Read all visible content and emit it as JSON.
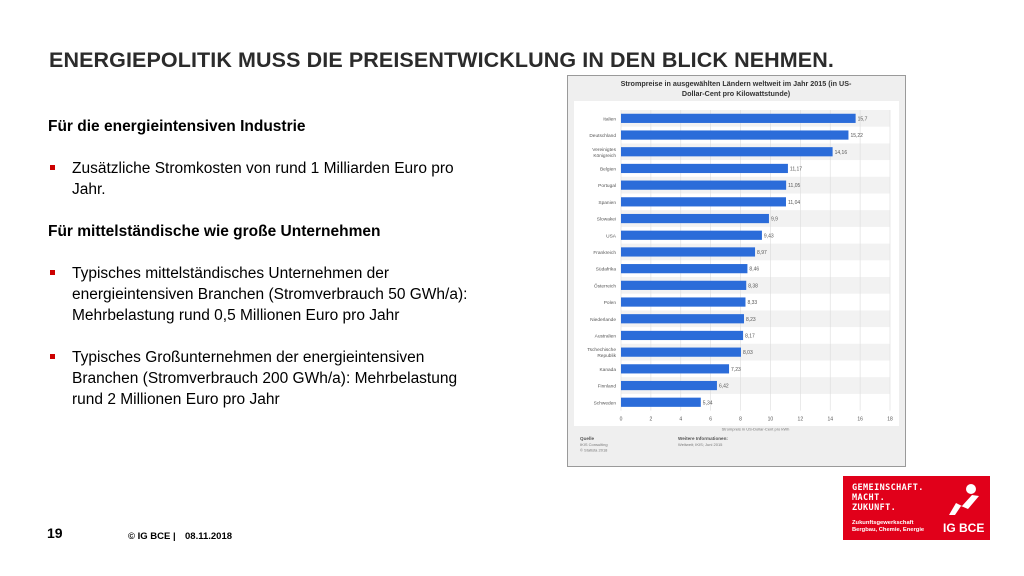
{
  "slide": {
    "title": "ENERGIEPOLITIK MUSS DIE PREISENTWICKLUNG IN DEN BLICK NEHMEN.",
    "page_number": "19",
    "copyright": "© IG BCE |",
    "date": "08.11.2018"
  },
  "content": {
    "heading1": "Für die energieintensiven Industrie",
    "bullet1": "Zusätzliche Stromkosten von rund 1 Milliarden Euro pro Jahr.",
    "heading2": "Für mittelständische wie große Unternehmen",
    "bullet2": "Typisches mittelständisches Unternehmen der energieintensiven Branchen (Stromverbrauch 50 GWh/a): Mehrbelastung rund 0,5 Millionen Euro pro Jahr",
    "bullet3": "Typisches Großunternehmen der energieintensiven Branchen (Stromverbrauch 200 GWh/a): Mehrbelastung rund 2 Millionen Euro pro Jahr"
  },
  "chart_data": {
    "type": "bar",
    "orientation": "horizontal",
    "title_line1": "Strompreise in ausgewählten Ländern weltweit im Jahr 2015 (in US-",
    "title_line2": "Dollar-Cent pro Kilowattstunde)",
    "categories": [
      "Italien",
      "Deutschland",
      "Vereinigtes Königreich",
      "Belgien",
      "Portugal",
      "Spanien",
      "Slowakei",
      "USA",
      "Frankreich",
      "Südafrika",
      "Österreich",
      "Polen",
      "Niederlande",
      "Australien",
      "Tschechische Republik",
      "Kanada",
      "Finnland",
      "Schweden"
    ],
    "values": [
      15.7,
      15.22,
      14.16,
      11.17,
      11.05,
      11.04,
      9.9,
      9.43,
      8.97,
      8.46,
      8.38,
      8.33,
      8.23,
      8.17,
      8.03,
      7.23,
      6.42,
      5.34
    ],
    "value_labels": [
      "15,7",
      "15,22",
      "14,16",
      "11,17",
      "11,05",
      "11,04",
      "9,9",
      "9,43",
      "8,97",
      "8,46",
      "8,38",
      "8,33",
      "8,23",
      "8,17",
      "8,03",
      "7,23",
      "6,42",
      "5,34"
    ],
    "xticks": [
      "0",
      "2",
      "4",
      "6",
      "8",
      "10",
      "12",
      "14",
      "16",
      "18"
    ],
    "xlim": [
      0,
      18
    ],
    "xlabel": "Strompreis in US-Dollar-Cent pro kWh",
    "bar_color": "#2b6cd9",
    "source_label": "Quelle",
    "source_lines": [
      "IKIS Consulting",
      "© Statista 2018"
    ],
    "info_label": "Weitere Informationen:",
    "info_lines": [
      "Weltweit; IKIS; Juni 2015"
    ]
  },
  "logo": {
    "slogan_lines": [
      "GEMEINSCHAFT.",
      "MACHT.",
      "ZUKUNFT."
    ],
    "sub_line1": "Zukunftsgewerkschaft",
    "sub_line2": "Bergbau, Chemie, Energie",
    "brand": "IG BCE",
    "color": "#e1001a"
  }
}
